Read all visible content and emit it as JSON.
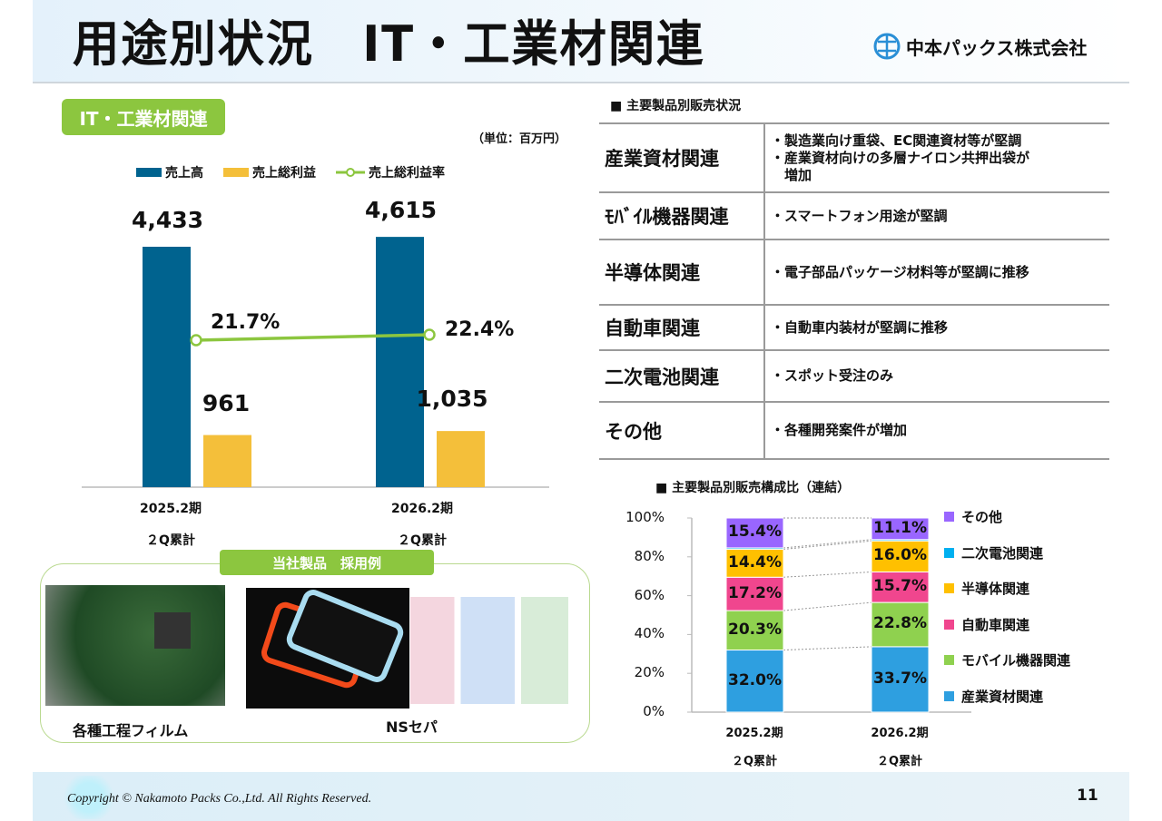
{
  "title": "用途別状況　IT・工業材関連",
  "logo_text": "中本パックス株式会社",
  "badge": "IT・工業材関連",
  "unit": "（単位：百万円）",
  "colors": {
    "sales": "#00638f",
    "gross": "#f4bf3a",
    "rate": "#8cc63f",
    "accent": "#8cc63f"
  },
  "chart_data": [
    {
      "type": "bar",
      "title": "IT・工業材関連",
      "categories": [
        [
          "2025.2期",
          "２Q累計"
        ],
        [
          "2026.2期",
          "２Q累計"
        ]
      ],
      "legend": [
        "売上高",
        "売上総利益",
        "売上総利益率"
      ],
      "series": [
        {
          "name": "売上高",
          "values": [
            4433,
            4615
          ],
          "labels": [
            "4,433",
            "4,615"
          ]
        },
        {
          "name": "売上総利益",
          "values": [
            961,
            1035
          ],
          "labels": [
            "961",
            "1,035"
          ]
        },
        {
          "name": "売上総利益率",
          "type": "line",
          "values": [
            21.7,
            22.4
          ],
          "labels": [
            "21.7%",
            "22.4%"
          ]
        }
      ]
    },
    {
      "type": "bar",
      "stacked": true,
      "title": "■ 主要製品別販売構成比（連結）",
      "categories": [
        [
          "2025.2期",
          "２Q累計"
        ],
        [
          "2026.2期",
          "２Q累計"
        ]
      ],
      "yticks": [
        "0%",
        "20%",
        "40%",
        "60%",
        "80%",
        "100%"
      ],
      "ylim": [
        0,
        100
      ],
      "series": [
        {
          "name": "産業資材関連",
          "color": "#2e9fe0",
          "values": [
            32.0,
            33.7
          ],
          "labels": [
            "32.0%",
            "33.7%"
          ]
        },
        {
          "name": "モバイル機器関連",
          "color": "#8fd14f",
          "values": [
            20.3,
            22.8
          ],
          "labels": [
            "20.3%",
            "22.8%"
          ]
        },
        {
          "name": "自動車関連",
          "color": "#f0468e",
          "values": [
            17.2,
            15.7
          ],
          "labels": [
            "17.2%",
            "15.7%"
          ]
        },
        {
          "name": "半導体関連",
          "color": "#ffc000",
          "values": [
            14.4,
            16.0
          ],
          "labels": [
            "14.4%",
            "16.0%"
          ]
        },
        {
          "name": "二次電池関連",
          "color": "#00b0f0",
          "values": [
            0.7,
            0.7
          ],
          "labels": [
            "",
            ""
          ]
        },
        {
          "name": "その他",
          "color": "#9966ff",
          "values": [
            15.4,
            11.1
          ],
          "labels": [
            "15.4%",
            "11.1%"
          ]
        }
      ],
      "legend_order": [
        "その他",
        "二次電池関連",
        "半導体関連",
        "自動車関連",
        "モバイル機器関連",
        "産業資材関連"
      ]
    }
  ],
  "table": {
    "title": "■ 主要製品別販売状況",
    "rows": [
      {
        "name": "産業資材関連",
        "notes": [
          "・製造業向け重袋、EC関連資材等が堅調",
          "・産業資材向けの多層ナイロン共押出袋が",
          "　増加"
        ]
      },
      {
        "name": "ﾓﾊﾞｲﾙ機器関連",
        "notes": [
          "・スマートフォン用途が堅調"
        ]
      },
      {
        "name": "半導体関連",
        "notes": [
          "・電子部品パッケージ材料等が堅調に推移"
        ]
      },
      {
        "name": "自動車関連",
        "notes": [
          "・自動車内装材が堅調に推移"
        ]
      },
      {
        "name": "二次電池関連",
        "notes": [
          "・スポット受注のみ"
        ]
      },
      {
        "name": "その他",
        "notes": [
          "・各種開発案件が増加"
        ]
      }
    ]
  },
  "products": {
    "label": "当社製品　採用例",
    "items": [
      "各種工程フィルム",
      "NSセパ"
    ]
  },
  "footer": {
    "copyright": "Copyright © Nakamoto Packs Co.,Ltd. All Rights Reserved.",
    "page": "11"
  }
}
